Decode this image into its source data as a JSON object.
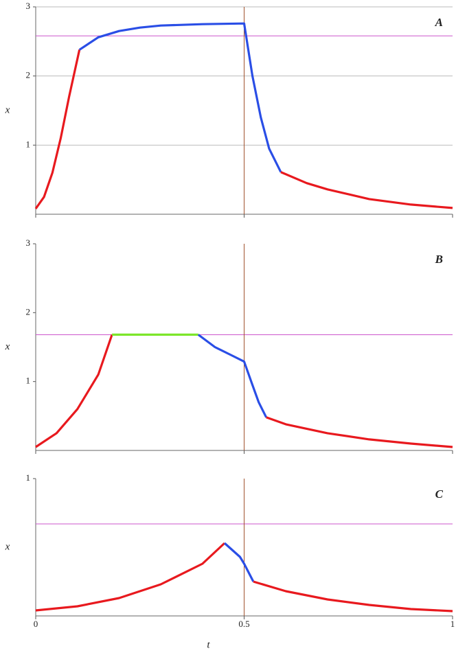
{
  "chart_data": [
    {
      "type": "line",
      "label": "A",
      "ylabel": "x",
      "xlim": [
        0,
        1
      ],
      "ylim": [
        0,
        3
      ],
      "yticks": [
        1,
        2,
        3
      ],
      "xticks": [
        0,
        0.5,
        1
      ],
      "xtick_labels": false,
      "grid": true,
      "hline": 2.58,
      "hline_color": "#cc55cc",
      "vline": 0.5,
      "vline_color": "#a0522d",
      "series": [
        {
          "color": "#e8191e",
          "x": [
            0,
            0.02,
            0.04,
            0.06,
            0.08,
            0.105
          ],
          "values": [
            0.08,
            0.25,
            0.6,
            1.1,
            1.7,
            2.38
          ]
        },
        {
          "color": "#2a4ee6",
          "x": [
            0.105,
            0.15,
            0.2,
            0.25,
            0.3,
            0.4,
            0.5,
            0.52,
            0.54,
            0.56,
            0.588
          ],
          "values": [
            2.38,
            2.56,
            2.65,
            2.7,
            2.73,
            2.75,
            2.76,
            2.0,
            1.4,
            0.95,
            0.61
          ]
        },
        {
          "color": "#e8191e",
          "x": [
            0.588,
            0.65,
            0.7,
            0.8,
            0.9,
            1.0
          ],
          "values": [
            0.61,
            0.45,
            0.36,
            0.22,
            0.14,
            0.09
          ]
        }
      ]
    },
    {
      "type": "line",
      "label": "B",
      "ylabel": "x",
      "xlim": [
        0,
        1
      ],
      "ylim": [
        0,
        3
      ],
      "yticks": [
        1,
        2,
        3
      ],
      "xticks": [
        0,
        0.5,
        1
      ],
      "xtick_labels": false,
      "grid": false,
      "hline": 1.68,
      "hline_color": "#cc55cc",
      "vline": 0.5,
      "vline_color": "#a0522d",
      "series": [
        {
          "color": "#e8191e",
          "x": [
            0,
            0.05,
            0.1,
            0.15,
            0.183
          ],
          "values": [
            0.05,
            0.25,
            0.6,
            1.1,
            1.68
          ]
        },
        {
          "color": "#7ce62a",
          "x": [
            0.183,
            0.39
          ],
          "values": [
            1.68,
            1.68
          ]
        },
        {
          "color": "#2a4ee6",
          "x": [
            0.39,
            0.43,
            0.47,
            0.5,
            0.52,
            0.535,
            0.553
          ],
          "values": [
            1.68,
            1.5,
            1.38,
            1.29,
            0.95,
            0.7,
            0.48
          ]
        },
        {
          "color": "#e8191e",
          "x": [
            0.553,
            0.6,
            0.7,
            0.8,
            0.9,
            1.0
          ],
          "values": [
            0.48,
            0.38,
            0.25,
            0.16,
            0.1,
            0.05
          ]
        }
      ]
    },
    {
      "type": "line",
      "label": "C",
      "ylabel": "x",
      "xlabel": "t",
      "xlim": [
        0,
        1
      ],
      "ylim": [
        0,
        1
      ],
      "yticks": [
        1
      ],
      "xticks": [
        0,
        0.5,
        1
      ],
      "xtick_labels": true,
      "grid": false,
      "hline": 0.67,
      "hline_color": "#cc55cc",
      "vline": 0.5,
      "vline_color": "#a0522d",
      "series": [
        {
          "color": "#e8191e",
          "x": [
            0,
            0.1,
            0.2,
            0.3,
            0.4,
            0.453
          ],
          "values": [
            0.04,
            0.07,
            0.13,
            0.23,
            0.38,
            0.53
          ]
        },
        {
          "color": "#2a4ee6",
          "x": [
            0.453,
            0.49,
            0.5,
            0.522
          ],
          "values": [
            0.53,
            0.43,
            0.38,
            0.25
          ]
        },
        {
          "color": "#e8191e",
          "x": [
            0.522,
            0.6,
            0.7,
            0.8,
            0.9,
            1.0
          ],
          "values": [
            0.25,
            0.18,
            0.12,
            0.08,
            0.05,
            0.035
          ]
        }
      ]
    }
  ]
}
